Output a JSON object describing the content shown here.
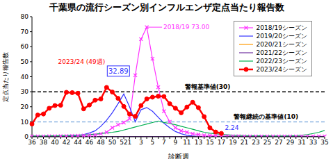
{
  "chart_data": {
    "type": "line",
    "title": "千葉県の流行シーズン別インフルエンザ定点当たり報告数",
    "x_label": "診断週",
    "y_label": "定点当たり報告数",
    "categories": [
      "36",
      null,
      "38",
      null,
      "40",
      null,
      "42",
      null,
      "44",
      null,
      "46",
      null,
      "48",
      null,
      "50",
      null,
      "52",
      "1",
      null,
      "3",
      null,
      "5",
      null,
      "7",
      null,
      "9",
      null,
      "11",
      null,
      "13",
      null,
      "15",
      null,
      "17",
      null,
      "19",
      null,
      "21",
      null,
      "23",
      null,
      "25",
      null,
      "27",
      null,
      "29",
      null,
      "31",
      null,
      "33",
      null,
      "35"
    ],
    "ylim": [
      0,
      80
    ],
    "yticks": [
      0,
      10,
      20,
      30,
      40,
      50,
      60,
      70,
      80
    ],
    "grid": false,
    "legend": "upper right",
    "series": [
      {
        "name": "2018/19シーズン",
        "color": "#ff33ff",
        "marker": "x",
        "line_style": "solid",
        "values": [
          0.3,
          0.3,
          0.3,
          0.4,
          0.4,
          0.5,
          0.5,
          0.6,
          0.7,
          0.8,
          1,
          1.3,
          2,
          3,
          6,
          8,
          9.5,
          12,
          41,
          65,
          73,
          52,
          33,
          17,
          10,
          6,
          4,
          3,
          2,
          1.5,
          1,
          0.8,
          0.6,
          0.5,
          0.4,
          0.4,
          0.4,
          0.3,
          0.3,
          0.3,
          0.3,
          0.3,
          0.3,
          0.3,
          0.3,
          0.3,
          0.3,
          0.3,
          0.3,
          0.3,
          0.3,
          0.3
        ]
      },
      {
        "name": "2019/20シーズン",
        "color": "#3333ff",
        "marker": "none",
        "line_style": "solid",
        "values": [
          0.2,
          0.2,
          0.3,
          0.3,
          0.4,
          0.5,
          0.6,
          0.8,
          1,
          1.5,
          2.5,
          4,
          7,
          11,
          16,
          22,
          28.5,
          20,
          10,
          18,
          19.5,
          17,
          13,
          9,
          6,
          3.5,
          2,
          1,
          0.5,
          0.3,
          0.2,
          0.2,
          0.1,
          0.1,
          0.1,
          0.1,
          0.1,
          0.1,
          0.1,
          0.1,
          0.1,
          0.1,
          0.1,
          0.1,
          0.1,
          0.1,
          0.1,
          0.1,
          0.1,
          0.1,
          0.1,
          0.1
        ]
      },
      {
        "name": "2020/21シーズン",
        "color": "#ff9900",
        "marker": "none",
        "line_style": "solid",
        "values": [
          0.1,
          0.1,
          0.1,
          0.1,
          0.1,
          0.1,
          0.1,
          0.1,
          0.1,
          0.1,
          0.1,
          0.1,
          0.1,
          0.1,
          0.1,
          0.1,
          0.1,
          0.1,
          0.1,
          0.1,
          0.1,
          0.1,
          0.1,
          0.1,
          0.1,
          0.1,
          0.1,
          0.1,
          0.1,
          0.1,
          0.1,
          0.1,
          0.1,
          0.1,
          0.1,
          0.1,
          0.1,
          0.1,
          0.1,
          0.1,
          0.1,
          0.1,
          0.1,
          0.1,
          0.1,
          0.1,
          0.1,
          0.1,
          0.1,
          0.1,
          0.1,
          0.1
        ]
      },
      {
        "name": "2021/22シーズン",
        "color": "#7030a0",
        "marker": "none",
        "line_style": "solid",
        "values": [
          0.2,
          0.2,
          0.2,
          0.2,
          0.2,
          0.2,
          0.2,
          0.2,
          0.2,
          0.2,
          0.2,
          0.2,
          0.2,
          0.2,
          0.2,
          0.2,
          0.2,
          0.2,
          0.2,
          0.2,
          0.2,
          0.2,
          0.2,
          0.2,
          0.2,
          0.2,
          0.2,
          0.2,
          0.2,
          0.2,
          0.2,
          0.2,
          0.2,
          0.2,
          0.2,
          0.2,
          0.2,
          0.2,
          0.2,
          0.2,
          0.2,
          0.2,
          0.2,
          0.2,
          0.2,
          0.2,
          0.2,
          0.2,
          0.2,
          0.2,
          0.2,
          0.2
        ]
      },
      {
        "name": "2022/23シーズン",
        "color": "#00b050",
        "marker": "none",
        "line_style": "solid",
        "values": [
          0.5,
          0.5,
          0.5,
          0.6,
          0.6,
          0.7,
          0.8,
          0.9,
          1,
          1.2,
          1.5,
          1.8,
          2.2,
          2.6,
          3,
          3.5,
          4.5,
          5.5,
          6.5,
          7.5,
          8.5,
          9.5,
          10.5,
          9.5,
          8.8,
          8,
          7,
          6,
          5,
          4,
          3,
          2.4,
          2,
          1.6,
          1.3,
          1,
          0.9,
          0.8,
          0.7,
          0.6,
          0.6,
          0.6,
          0.5,
          0.5,
          0.5,
          0.6,
          0.7,
          1,
          1.5,
          2.2,
          3,
          4.2
        ]
      },
      {
        "name": "2023/24シーズン",
        "color": "#ff0000",
        "marker": "circle",
        "line_style": "solid",
        "values": [
          8.5,
          14.5,
          15.2,
          19,
          20.8,
          21,
          29.6,
          29.4,
          29,
          18.6,
          21.2,
          24.4,
          25.2,
          32.89,
          29.8,
          25.6,
          20.2,
          15.1,
          13.6,
          20.8,
          25.2,
          26.4,
          27,
          26.8,
          22,
          19,
          16,
          19.8,
          23,
          19.4,
          13.4,
          6,
          3.2,
          2.24,
          null,
          null,
          null,
          null,
          null,
          null,
          null,
          null,
          null,
          null,
          null,
          null,
          null,
          null,
          null,
          null,
          null,
          null
        ]
      }
    ],
    "reference_lines": [
      {
        "value": 30,
        "label": "警報基準値(30)",
        "color": "#000000",
        "line_style": "dashed"
      },
      {
        "value": 10,
        "label": "警報継続の基準値(10)",
        "color": "#8db4e2",
        "line_style": "dashed"
      }
    ],
    "annotations": [
      {
        "text": "2018/19 73.00",
        "series": "2018/19シーズン",
        "value": 73,
        "color": "#ff33ff"
      },
      {
        "text": "2023/24 (49週)",
        "series": "2023/24シーズン",
        "value": 32.89,
        "color": "#ff0000"
      },
      {
        "text": "32.89",
        "series": "2023/24シーズン",
        "value": 32.89,
        "color": "#3333ff"
      },
      {
        "text": "2.24",
        "series": "2023/24シーズン",
        "value": 2.24,
        "color": "#3333ff"
      }
    ]
  }
}
